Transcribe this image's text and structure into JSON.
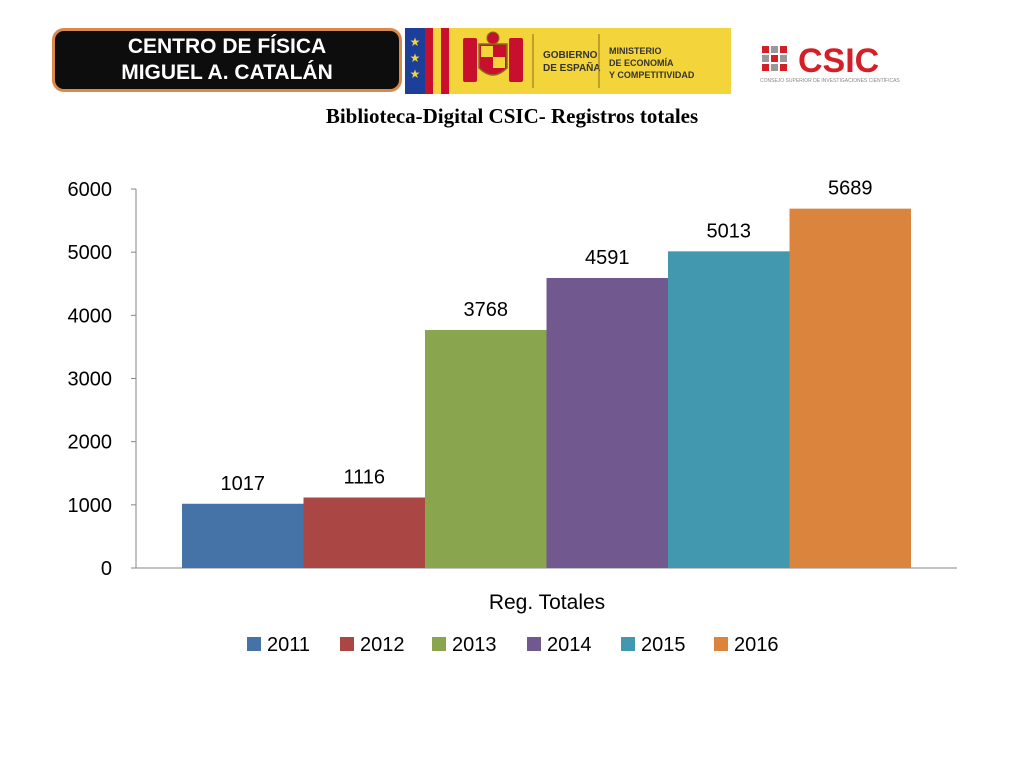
{
  "header": {
    "center_line1": "CENTRO DE FÍSICA",
    "center_line2": "MIGUEL A. CATALÁN",
    "gov_text_1a": "GOBIERNO",
    "gov_text_1b": "DE ESPAÑA",
    "gov_text_2a": "MINISTERIO",
    "gov_text_2b": "DE ECONOMÍA",
    "gov_text_2c": "Y COMPETITIVIDAD",
    "csic_wordmark": "CSIC",
    "csic_subtext": "CONSEJO SUPERIOR DE INVESTIGACIONES CIENTÍFICAS"
  },
  "colors": {
    "gov_bg": "#f4d43b",
    "eu_blue": "#1c3f99",
    "flag_red": "#c8102e",
    "csic_red": "#d41f26"
  },
  "chart_data": {
    "type": "bar",
    "title": "Biblioteca-Digital CSIC- Registros totales",
    "xlabel": "Reg.  Totales",
    "ylabel": "",
    "categories": [
      "Reg.  Totales"
    ],
    "ylim": [
      0,
      6000
    ],
    "yticks": [
      0,
      1000,
      2000,
      3000,
      4000,
      5000,
      6000
    ],
    "legend_position": "bottom",
    "grid": false,
    "series": [
      {
        "name": "2011",
        "values": [
          1017
        ],
        "color": "#4572a7"
      },
      {
        "name": "2012",
        "values": [
          1116
        ],
        "color": "#aa4643"
      },
      {
        "name": "2013",
        "values": [
          3768
        ],
        "color": "#89a54e"
      },
      {
        "name": "2014",
        "values": [
          4591
        ],
        "color": "#71588f"
      },
      {
        "name": "2015",
        "values": [
          5013
        ],
        "color": "#4198af"
      },
      {
        "name": "2016",
        "values": [
          5689
        ],
        "color": "#db843d"
      }
    ]
  }
}
